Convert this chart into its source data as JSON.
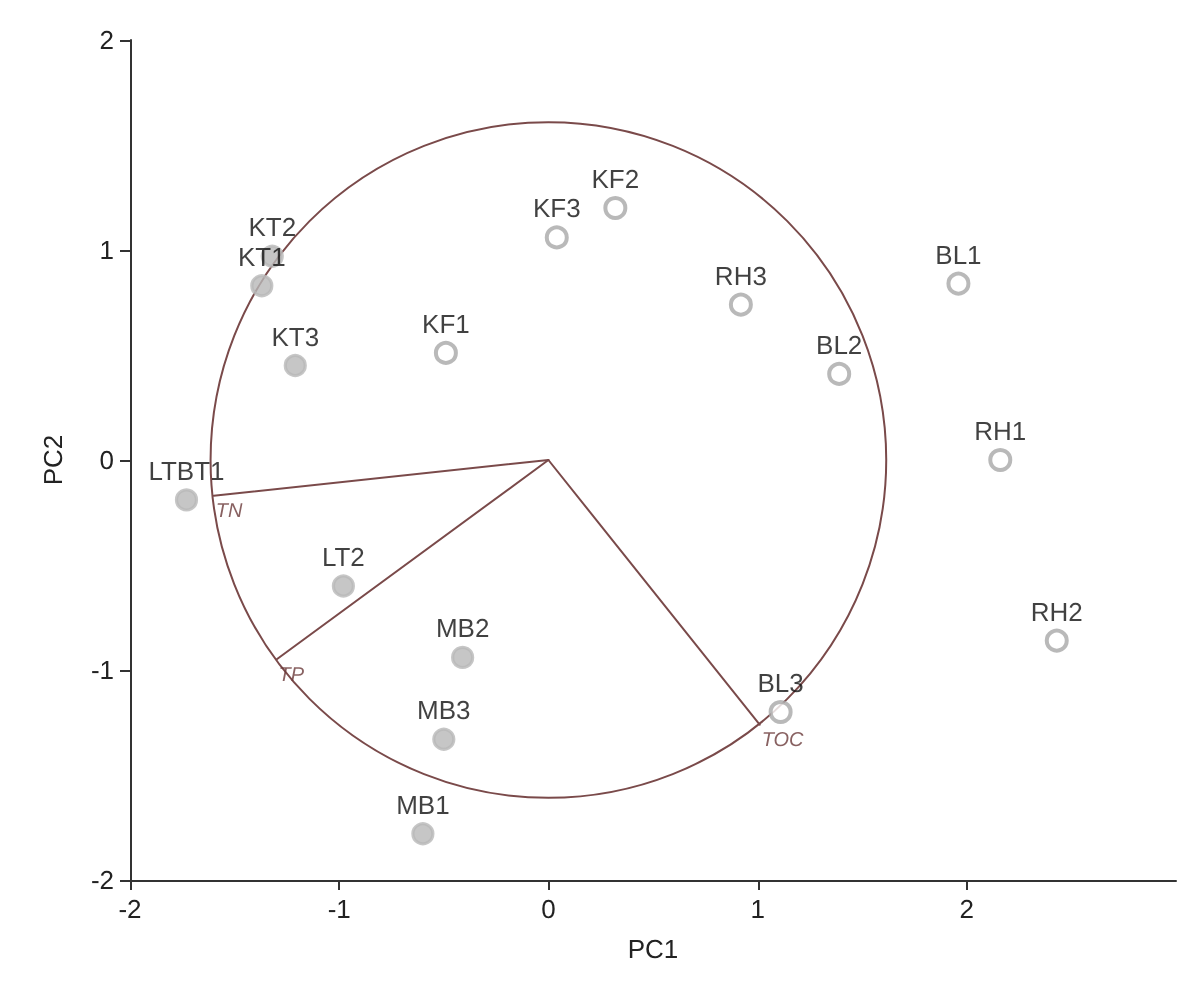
{
  "chart_data": {
    "type": "scatter",
    "xlabel": "PC1",
    "ylabel": "PC2",
    "xlim": [
      -2,
      3
    ],
    "xticks": [
      -2,
      -1,
      0,
      1,
      2
    ],
    "ylim": [
      -2,
      2
    ],
    "yticks": [
      -2,
      -1,
      0,
      1,
      2
    ],
    "grid": false,
    "series": [
      {
        "marker": "circle",
        "color": "#b8b8b8",
        "x": [
          -1.37,
          -1.32,
          -1.21,
          -1.73,
          -0.98,
          -0.41,
          -0.5,
          -0.6
        ],
        "values": [
          0.83,
          0.97,
          0.45,
          -0.19,
          -0.6,
          -0.94,
          -1.33,
          -1.78
        ]
      },
      {
        "marker": "circle_open",
        "color": "#a8a8a8",
        "x": [
          -0.49,
          0.04,
          0.32,
          0.92,
          1.39,
          1.96,
          2.16,
          2.43,
          1.11
        ],
        "values": [
          0.51,
          1.06,
          1.2,
          0.74,
          0.41,
          0.84,
          0.0,
          -0.86,
          -1.2
        ]
      },
      {
        "type": "line",
        "color": "#7a4a4a",
        "x": [
          0,
          -1.6
        ],
        "values": [
          0,
          -0.17
        ]
      },
      {
        "type": "line",
        "color": "#7a4a4a",
        "x": [
          0,
          -1.3
        ],
        "values": [
          0,
          -0.95
        ]
      },
      {
        "type": "line",
        "color": "#7a4a4a",
        "x": [
          0,
          1.01
        ],
        "values": [
          0,
          -1.26
        ]
      }
    ],
    "annotations": [
      {
        "text": "KT1",
        "x": -1.37,
        "y": 0.83
      },
      {
        "text": "KT2",
        "x": -1.32,
        "y": 0.97
      },
      {
        "text": "KT3",
        "x": -1.21,
        "y": 0.45
      },
      {
        "text": "LTBT1",
        "x": -1.73,
        "y": -0.19
      },
      {
        "text": "LT2",
        "x": -0.98,
        "y": -0.6
      },
      {
        "text": "MB2",
        "x": -0.41,
        "y": -0.94
      },
      {
        "text": "MB3",
        "x": -0.5,
        "y": -1.33
      },
      {
        "text": "MB1",
        "x": -0.6,
        "y": -1.78
      },
      {
        "text": "KF1",
        "x": -0.49,
        "y": 0.51
      },
      {
        "text": "KF3",
        "x": 0.04,
        "y": 1.06
      },
      {
        "text": "KF2",
        "x": 0.32,
        "y": 1.2
      },
      {
        "text": "RH3",
        "x": 0.92,
        "y": 0.74
      },
      {
        "text": "BL2",
        "x": 1.39,
        "y": 0.41
      },
      {
        "text": "BL1",
        "x": 1.96,
        "y": 0.84
      },
      {
        "text": "RH1",
        "x": 2.16,
        "y": 0.0
      },
      {
        "text": "RH2",
        "x": 2.43,
        "y": -0.86
      },
      {
        "text": "BL3",
        "x": 1.11,
        "y": -1.2
      },
      {
        "text": "TN",
        "x": -1.6,
        "y": -0.17
      },
      {
        "text": "TP",
        "x": -1.3,
        "y": -0.95
      },
      {
        "text": "TOC",
        "x": 1.01,
        "y": -1.26
      }
    ]
  }
}
